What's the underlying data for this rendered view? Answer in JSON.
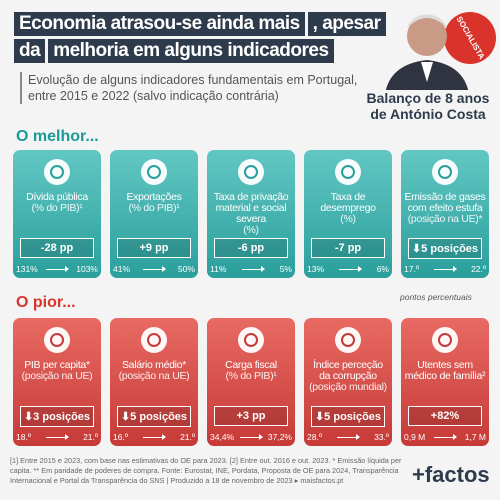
{
  "header": {
    "title_line1": "Economia atrasou-se ainda mais",
    "title_line1b": ", apesar",
    "title_line2a": "da",
    "title_line2b": "melhoria em alguns indicadores",
    "subtitle": "Evolução de alguns indicadores fundamentais em Portugal, entre 2015 e 2022 (salvo indicação contrária)",
    "badge_line1": "Balanço de 8 anos",
    "badge_line2": "de António Costa",
    "stamp": "SOCIALISTA"
  },
  "best": {
    "heading": "O melhor...",
    "cards": [
      {
        "label": "Dívida pública",
        "sub": "(% do PIB)¹",
        "change": "-28 pp",
        "from": "131%",
        "to": "103%"
      },
      {
        "label": "Exportações",
        "sub": "(% do PIB)¹",
        "change": "+9 pp",
        "from": "41%",
        "to": "50%"
      },
      {
        "label": "Taxa de privação material e social severa",
        "sub": "(%)",
        "change": "-6 pp",
        "from": "11%",
        "to": "5%"
      },
      {
        "label": "Taxa de desemprego",
        "sub": "(%)",
        "change": "-7 pp",
        "from": "13%",
        "to": "6%"
      },
      {
        "label": "Emissão de gases com efeito estufa",
        "sub": "(posição na UE)*",
        "change": "⬇5 posições",
        "from": "17.º",
        "to": "22.º"
      }
    ],
    "note": "pontos percentuais"
  },
  "worst": {
    "heading": "O pior...",
    "cards": [
      {
        "label": "PIB per capita*",
        "sub": "(posição na UE)",
        "change": "⬇3 posições",
        "from": "18.º",
        "to": "21.º"
      },
      {
        "label": "Salário médio*",
        "sub": "(posição na UE)",
        "change": "⬇5 posições",
        "from": "16.º",
        "to": "21.º"
      },
      {
        "label": "Carga fiscal",
        "sub": "(% do PIB)¹",
        "change": "+3 pp",
        "from": "34,4%",
        "to": "37,2%"
      },
      {
        "label": "Índice perceção da corrupção",
        "sub": "(posição mundial)",
        "change": "⬇5 posições",
        "from": "28.º",
        "to": "33.º"
      },
      {
        "label": "Utentes sem médico de família²",
        "sub": "",
        "change": "+82%",
        "from": "0,9 M",
        "to": "1,7 M"
      }
    ]
  },
  "footer": {
    "text": "[1] Entre 2015 e 2023, com base nas estimativas do OE para 2023. [2] Entre out. 2016 e out. 2023. * Emissão líquida per capita. ** Em paridade de poderes de compra. Fonte: Eurostat, INE, Pordata, Proposta de OE para 2024, Transparência Internacional e Portal da Transparência do SNS | Produzido a 18 de novembro de 2023 ▸ maisfactos.pt",
    "logo": "+factos"
  }
}
